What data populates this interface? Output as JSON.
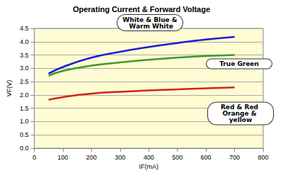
{
  "chart_data": {
    "type": "line",
    "title": "Operating Current & Forward Voltage",
    "x_label": "IF(mA)",
    "y_label": "VF(V)",
    "x": [
      50,
      100,
      200,
      300,
      400,
      500,
      600,
      700
    ],
    "series": [
      {
        "name": "White & Blue & Warm White",
        "color": "#1c1cd4",
        "values": [
          2.8,
          3.05,
          3.4,
          3.62,
          3.8,
          3.95,
          4.08,
          4.18
        ]
      },
      {
        "name": "True Green",
        "color": "#3a9a2a",
        "values": [
          2.72,
          2.9,
          3.1,
          3.22,
          3.32,
          3.4,
          3.46,
          3.5
        ]
      },
      {
        "name": "Red & Red Orange & yellow",
        "color": "#d42020",
        "values": [
          1.82,
          1.92,
          2.05,
          2.12,
          2.17,
          2.21,
          2.25,
          2.28
        ]
      }
    ],
    "xlim": [
      0,
      800
    ],
    "xticks": [
      0,
      100,
      200,
      300,
      400,
      500,
      600,
      700,
      800
    ],
    "ylim": [
      0,
      4.5
    ],
    "yticks": [
      {
        "value": 0,
        "label": "0.0"
      },
      0.5,
      {
        "value": 1,
        "label": "1.0"
      },
      1.5,
      {
        "value": 2,
        "label": "2.0"
      },
      2.5,
      {
        "value": 3,
        "label": "3.0"
      },
      3.5,
      {
        "value": 4,
        "label": "4.0"
      },
      4.5
    ],
    "grid": true
  }
}
